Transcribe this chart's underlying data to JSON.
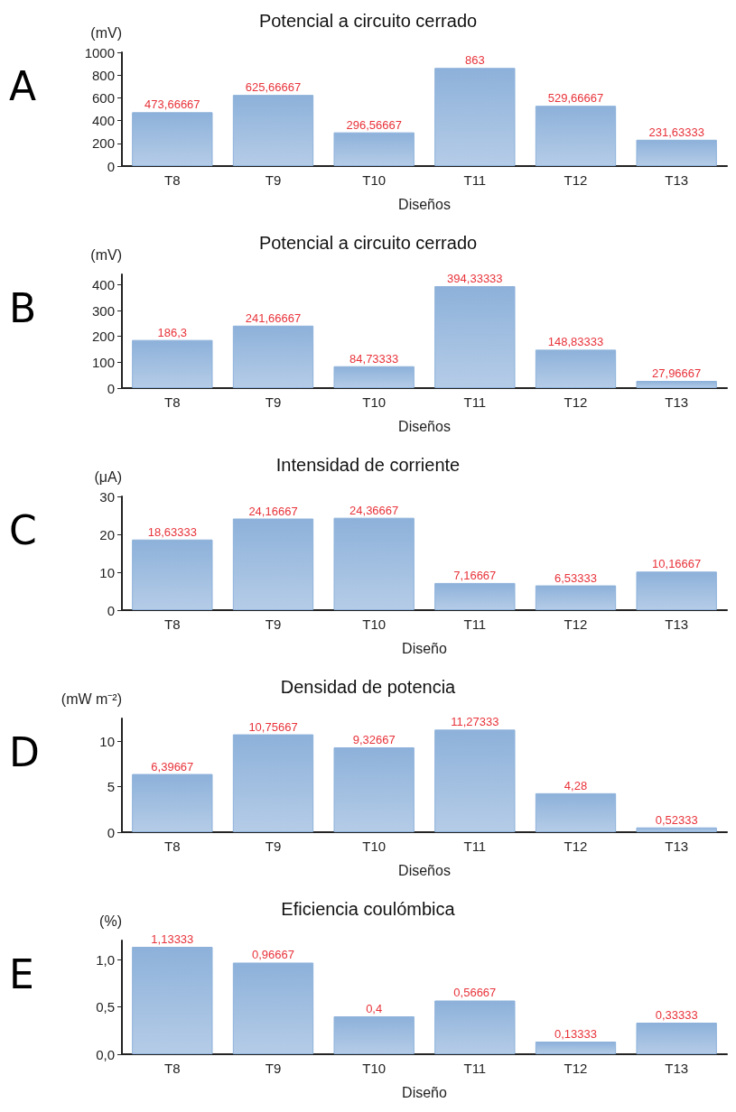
{
  "chart_data": [
    {
      "type": "bar",
      "title": "Potencial a circuito cerrado",
      "xlabel": "Diseños",
      "ylabel": "(mV)",
      "annotations": [
        "A"
      ],
      "categories": [
        "T8",
        "T9",
        "T10",
        "T11",
        "T12",
        "T13"
      ],
      "values": [
        473.66667,
        625.66667,
        296.56667,
        863,
        529.66667,
        231.63333
      ],
      "value_labels": [
        "473,66667",
        "625,66667",
        "296,56667",
        "863",
        "529,66667",
        "231,63333"
      ],
      "color": "#8db1da",
      "ylim": [
        0,
        1000
      ],
      "yticks": [
        0,
        200,
        400,
        600,
        800,
        1000
      ],
      "grid": false
    },
    {
      "type": "bar",
      "title": "Potencial a circuito cerrado",
      "xlabel": "Diseños",
      "ylabel": "(mV)",
      "annotations": [
        "B"
      ],
      "categories": [
        "T8",
        "T9",
        "T10",
        "T11",
        "T12",
        "T13"
      ],
      "values": [
        186.3,
        241.66667,
        84.73333,
        394.33333,
        148.83333,
        27.96667
      ],
      "value_labels": [
        "186,3",
        "241,66667",
        "84,73333",
        "394,33333",
        "148,83333",
        "27,96667"
      ],
      "color": "#8db1da",
      "ylim": [
        0,
        440
      ],
      "yticks": [
        0,
        100,
        200,
        300,
        400
      ],
      "grid": false
    },
    {
      "type": "bar",
      "title": "Intensidad de corriente",
      "xlabel": "Diseño",
      "ylabel": "(μA)",
      "annotations": [
        "C"
      ],
      "categories": [
        "T8",
        "T9",
        "T10",
        "T11",
        "T12",
        "T13"
      ],
      "values": [
        18.63333,
        24.16667,
        24.36667,
        7.16667,
        6.53333,
        10.16667
      ],
      "value_labels": [
        "18,63333",
        "24,16667",
        "24,36667",
        "7,16667",
        "6,53333",
        "10,16667"
      ],
      "color": "#8db1da",
      "ylim": [
        0,
        30
      ],
      "yticks": [
        0,
        10,
        20,
        30
      ],
      "grid": false
    },
    {
      "type": "bar",
      "title": "Densidad de potencia",
      "xlabel": "Diseños",
      "ylabel": "(mW m⁻²)",
      "annotations": [
        "D"
      ],
      "categories": [
        "T8",
        "T9",
        "T10",
        "T11",
        "T12",
        "T13"
      ],
      "values": [
        6.39667,
        10.75667,
        9.32667,
        11.27333,
        4.28,
        0.52333
      ],
      "value_labels": [
        "6,39667",
        "10,75667",
        "9,32667",
        "11,27333",
        "4,28",
        "0,52333"
      ],
      "color": "#8db1da",
      "ylim": [
        0,
        12.5
      ],
      "yticks": [
        0,
        5,
        10
      ],
      "grid": false
    },
    {
      "type": "bar",
      "title": "Eficiencia coulómbica",
      "xlabel": "Diseño",
      "ylabel": "(%)",
      "annotations": [
        "E"
      ],
      "categories": [
        "T8",
        "T9",
        "T10",
        "T11",
        "T12",
        "T13"
      ],
      "values": [
        1.13333,
        0.96667,
        0.4,
        0.56667,
        0.13333,
        0.33333
      ],
      "value_labels": [
        "1,13333",
        "0,96667",
        "0,4",
        "0,56667",
        "0,13333",
        "0,33333"
      ],
      "color": "#8db1da",
      "ylim": [
        0,
        1.2
      ],
      "yticks": [
        {
          "value": 0,
          "label": "0,0"
        },
        {
          "value": 0.5,
          "label": "0,5"
        },
        {
          "value": 1,
          "label": "1,0"
        }
      ],
      "grid": false
    }
  ]
}
